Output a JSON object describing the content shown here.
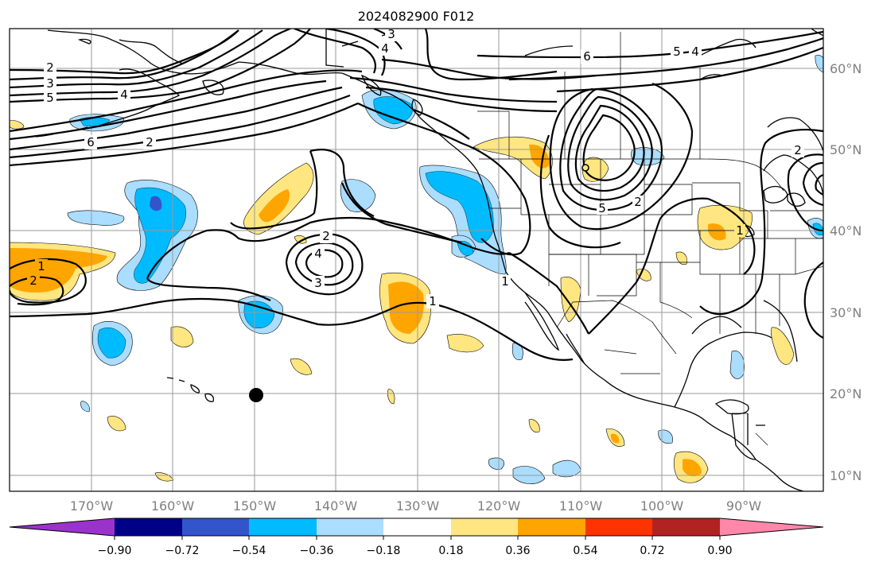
{
  "map": {
    "title": "2024082900 F012",
    "lat_labels": [
      "60°N",
      "50°N",
      "40°N",
      "30°N",
      "20°N",
      "10°N"
    ],
    "lon_labels": [
      "170°W",
      "160°W",
      "150°W",
      "140°W",
      "130°W",
      "120°W",
      "110°W",
      "100°W",
      "90°W"
    ]
  },
  "colorbar": {
    "tick_labels": [
      "−0.90",
      "−0.72",
      "−0.54",
      "−0.36",
      "−0.18",
      "0.18",
      "0.36",
      "0.54",
      "0.72",
      "0.90"
    ],
    "colors": [
      "#9933cc",
      "#000088",
      "#3355cc",
      "#00bbff",
      "#aaddff",
      "#ffffff",
      "#ffe680",
      "#ffa500",
      "#ff3300",
      "#b22222",
      "#ff88aa"
    ]
  },
  "contour_labels": [
    "2",
    "3",
    "5",
    "4",
    "6",
    "2",
    "6",
    "5",
    "4",
    "3",
    "4",
    "2",
    "4",
    "3",
    "1",
    "1",
    "2",
    "1",
    "5",
    "2",
    "1",
    "2"
  ]
}
